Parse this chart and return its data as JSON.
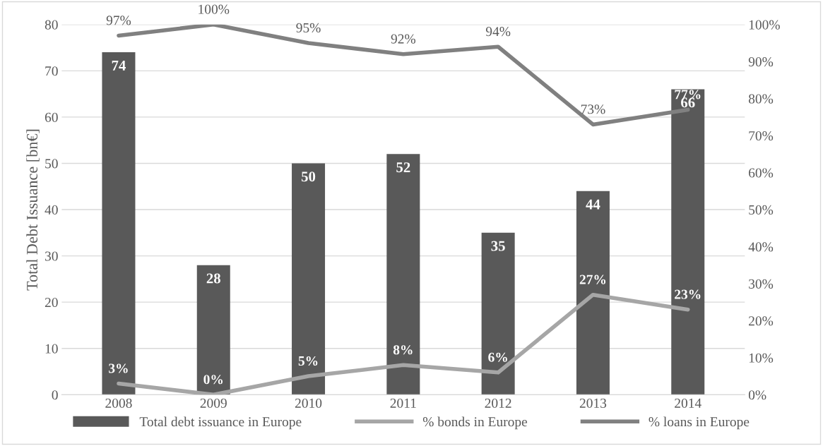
{
  "chart_data": {
    "type": "bar",
    "ylabel": "Total Debt Issuance [bn€]",
    "categories": [
      "2008",
      "2009",
      "2010",
      "2011",
      "2012",
      "2013",
      "2014"
    ],
    "series": [
      {
        "name": "Total debt issuance in Europe",
        "type": "bar",
        "color": "#595959",
        "values": [
          74,
          28,
          50,
          52,
          35,
          44,
          66
        ],
        "value_labels": [
          "74",
          "28",
          "50",
          "52",
          "35",
          "44",
          "66"
        ]
      },
      {
        "name": "% bonds in Europe",
        "type": "line",
        "axis": "y2",
        "color": "#a6a6a6",
        "values": [
          3,
          0,
          5,
          8,
          6,
          27,
          23
        ],
        "value_labels": [
          "3%",
          "0%",
          "5%",
          "8%",
          "6%",
          "27%",
          "23%"
        ]
      },
      {
        "name": "% loans in Europe",
        "type": "line",
        "axis": "y2",
        "color": "#808080",
        "values": [
          97,
          100,
          95,
          92,
          94,
          73,
          77
        ],
        "value_labels": [
          "97%",
          "100%",
          "95%",
          "92%",
          "94%",
          "73%",
          "77%"
        ]
      }
    ],
    "ylim": [
      0,
      80
    ],
    "yticks": [
      0,
      10,
      20,
      30,
      40,
      50,
      60,
      70,
      80
    ],
    "y2lim": [
      0,
      100
    ],
    "y2ticks": [
      {
        "value": 0,
        "label": "0%"
      },
      {
        "value": 10,
        "label": "10%"
      },
      {
        "value": 20,
        "label": "20%"
      },
      {
        "value": 30,
        "label": "30%"
      },
      {
        "value": 40,
        "label": "40%"
      },
      {
        "value": 50,
        "label": "50%"
      },
      {
        "value": 60,
        "label": "60%"
      },
      {
        "value": 70,
        "label": "70%"
      },
      {
        "value": 80,
        "label": "80%"
      },
      {
        "value": 90,
        "label": "90%"
      },
      {
        "value": 100,
        "label": "100%"
      }
    ],
    "grid": "y",
    "legend": "bottom",
    "marker": "none",
    "line_style": "solid"
  }
}
